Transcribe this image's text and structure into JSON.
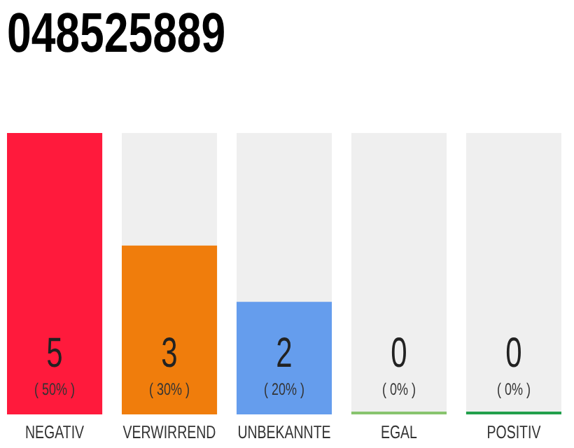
{
  "chart_data": {
    "type": "bar",
    "title": "048525889",
    "categories": [
      "NEGATIV",
      "VERWIRREND",
      "UNBEKANNTE",
      "EGAL",
      "POSITIV"
    ],
    "values": [
      5,
      3,
      2,
      0,
      0
    ],
    "colors": [
      "#ff1a3c",
      "#f07d0c",
      "#659ded",
      "#88c46e",
      "#22a04c"
    ],
    "data_labels": true,
    "annotations": [
      "( 50% )",
      "( 30% )",
      "( 20% )",
      "( 0% )",
      "( 0% )"
    ]
  }
}
